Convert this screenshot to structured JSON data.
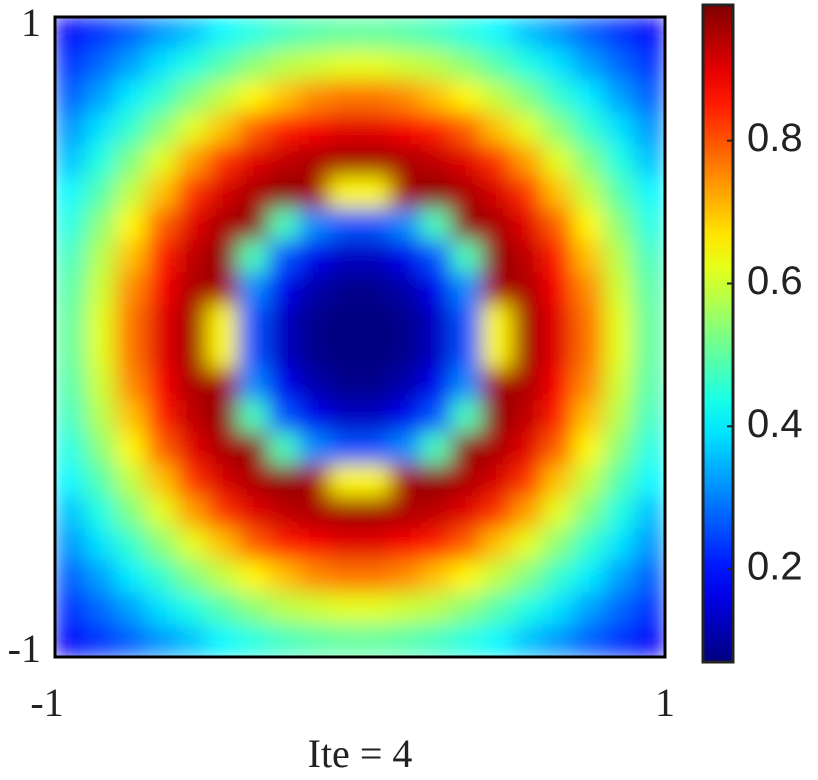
{
  "chart_data": {
    "type": "heatmap",
    "xlabel": "Ite = 4",
    "colormap": "jet",
    "xlim": [
      -1,
      1
    ],
    "ylim": [
      -1,
      1
    ],
    "xticks": [
      -1,
      1
    ],
    "yticks": [
      -1,
      1
    ],
    "clim": [
      0.07,
      0.99
    ],
    "cticks": [
      0.2,
      0.4,
      0.6,
      0.8
    ],
    "x": [
      -0.95,
      -0.85,
      -0.75,
      -0.65,
      -0.55,
      -0.45,
      -0.35,
      -0.25,
      -0.15,
      -0.05,
      0.05,
      0.15,
      0.25,
      0.35,
      0.45,
      0.55,
      0.65,
      0.75,
      0.85,
      0.95
    ],
    "y": [
      0.95,
      0.85,
      0.75,
      0.65,
      0.55,
      0.45,
      0.35,
      0.25,
      0.15,
      0.05,
      -0.05,
      -0.15,
      -0.25,
      -0.35,
      -0.45,
      -0.55,
      -0.65,
      -0.75,
      -0.85,
      -0.95
    ],
    "z": [
      [
        0.18,
        0.23,
        0.27,
        0.32,
        0.36,
        0.41,
        0.44,
        0.47,
        0.49,
        0.5,
        0.5,
        0.49,
        0.47,
        0.44,
        0.41,
        0.36,
        0.32,
        0.27,
        0.23,
        0.18
      ],
      [
        0.23,
        0.28,
        0.33,
        0.39,
        0.44,
        0.49,
        0.54,
        0.58,
        0.6,
        0.62,
        0.62,
        0.6,
        0.58,
        0.54,
        0.49,
        0.44,
        0.39,
        0.33,
        0.28,
        0.23
      ],
      [
        0.27,
        0.33,
        0.4,
        0.46,
        0.53,
        0.59,
        0.65,
        0.7,
        0.75,
        0.77,
        0.77,
        0.75,
        0.7,
        0.65,
        0.59,
        0.53,
        0.46,
        0.4,
        0.33,
        0.27
      ],
      [
        0.32,
        0.39,
        0.46,
        0.54,
        0.62,
        0.7,
        0.79,
        0.85,
        0.88,
        0.9,
        0.9,
        0.88,
        0.85,
        0.79,
        0.7,
        0.62,
        0.54,
        0.46,
        0.39,
        0.32
      ],
      [
        0.36,
        0.44,
        0.53,
        0.62,
        0.73,
        0.83,
        0.9,
        0.93,
        0.95,
        0.96,
        0.96,
        0.95,
        0.93,
        0.9,
        0.83,
        0.73,
        0.62,
        0.53,
        0.44,
        0.36
      ],
      [
        0.41,
        0.49,
        0.59,
        0.7,
        0.83,
        0.91,
        0.95,
        0.98,
        0.96,
        0.65,
        0.65,
        0.96,
        0.98,
        0.95,
        0.91,
        0.83,
        0.7,
        0.59,
        0.49,
        0.41
      ],
      [
        0.44,
        0.54,
        0.65,
        0.79,
        0.9,
        0.95,
        0.98,
        0.48,
        0.31,
        0.26,
        0.26,
        0.31,
        0.48,
        0.98,
        0.95,
        0.9,
        0.79,
        0.65,
        0.54,
        0.44
      ],
      [
        0.47,
        0.58,
        0.7,
        0.85,
        0.93,
        0.98,
        0.48,
        0.26,
        0.17,
        0.13,
        0.13,
        0.17,
        0.26,
        0.48,
        0.98,
        0.93,
        0.85,
        0.7,
        0.58,
        0.47
      ],
      [
        0.49,
        0.6,
        0.75,
        0.88,
        0.95,
        0.96,
        0.31,
        0.17,
        0.11,
        0.08,
        0.08,
        0.11,
        0.17,
        0.31,
        0.96,
        0.95,
        0.88,
        0.75,
        0.6,
        0.49
      ],
      [
        0.5,
        0.62,
        0.77,
        0.9,
        0.96,
        0.65,
        0.26,
        0.13,
        0.08,
        0.05,
        0.05,
        0.08,
        0.13,
        0.26,
        0.65,
        0.96,
        0.9,
        0.77,
        0.62,
        0.5
      ],
      [
        0.5,
        0.62,
        0.77,
        0.9,
        0.96,
        0.65,
        0.26,
        0.13,
        0.08,
        0.05,
        0.05,
        0.08,
        0.13,
        0.26,
        0.65,
        0.96,
        0.9,
        0.77,
        0.62,
        0.5
      ],
      [
        0.49,
        0.6,
        0.75,
        0.88,
        0.95,
        0.96,
        0.31,
        0.17,
        0.11,
        0.08,
        0.08,
        0.11,
        0.17,
        0.31,
        0.96,
        0.95,
        0.88,
        0.75,
        0.6,
        0.49
      ],
      [
        0.47,
        0.58,
        0.7,
        0.85,
        0.93,
        0.98,
        0.48,
        0.26,
        0.17,
        0.13,
        0.13,
        0.17,
        0.26,
        0.48,
        0.98,
        0.93,
        0.85,
        0.7,
        0.58,
        0.47
      ],
      [
        0.44,
        0.54,
        0.65,
        0.79,
        0.9,
        0.95,
        0.98,
        0.48,
        0.31,
        0.26,
        0.26,
        0.31,
        0.48,
        0.98,
        0.95,
        0.9,
        0.79,
        0.65,
        0.54,
        0.44
      ],
      [
        0.41,
        0.49,
        0.59,
        0.7,
        0.83,
        0.91,
        0.95,
        0.98,
        0.96,
        0.65,
        0.65,
        0.96,
        0.98,
        0.95,
        0.91,
        0.83,
        0.7,
        0.59,
        0.49,
        0.41
      ],
      [
        0.36,
        0.44,
        0.53,
        0.62,
        0.73,
        0.83,
        0.9,
        0.93,
        0.95,
        0.96,
        0.96,
        0.95,
        0.93,
        0.9,
        0.83,
        0.73,
        0.62,
        0.53,
        0.44,
        0.36
      ],
      [
        0.32,
        0.39,
        0.46,
        0.54,
        0.62,
        0.7,
        0.79,
        0.85,
        0.88,
        0.9,
        0.9,
        0.88,
        0.85,
        0.79,
        0.7,
        0.62,
        0.54,
        0.46,
        0.39,
        0.32
      ],
      [
        0.27,
        0.33,
        0.4,
        0.46,
        0.53,
        0.59,
        0.65,
        0.7,
        0.75,
        0.77,
        0.77,
        0.75,
        0.7,
        0.65,
        0.59,
        0.53,
        0.46,
        0.4,
        0.33,
        0.27
      ],
      [
        0.23,
        0.28,
        0.33,
        0.39,
        0.44,
        0.49,
        0.54,
        0.58,
        0.6,
        0.62,
        0.62,
        0.6,
        0.58,
        0.54,
        0.49,
        0.44,
        0.39,
        0.33,
        0.28,
        0.23
      ],
      [
        0.18,
        0.23,
        0.27,
        0.32,
        0.36,
        0.41,
        0.44,
        0.47,
        0.49,
        0.5,
        0.5,
        0.49,
        0.47,
        0.44,
        0.41,
        0.36,
        0.32,
        0.27,
        0.23,
        0.18
      ]
    ]
  }
}
